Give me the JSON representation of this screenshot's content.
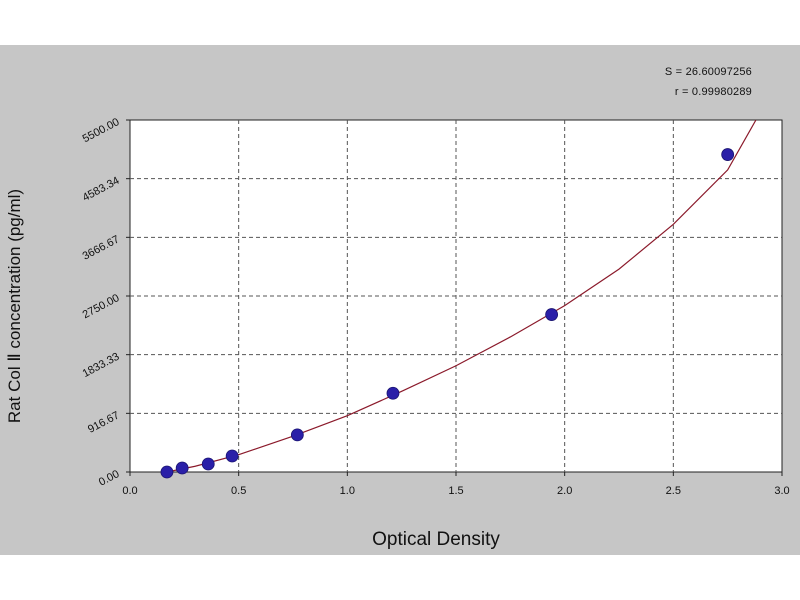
{
  "colors": {
    "panel_background": "#c6c6c6",
    "plot_background": "#ffffff",
    "curve": "#8b1a2b",
    "markers": "#2a1fa8",
    "grid": "#555555"
  },
  "stats": {
    "s_line": "S = 26.60097256",
    "r_line": "r = 0.99980289"
  },
  "chart_data": {
    "type": "scatter",
    "xlabel": "Optical Density",
    "ylabel": "Rat Col Ⅱ concentration (pg/ml)",
    "xlim": [
      0,
      3.0
    ],
    "ylim": [
      0,
      5500
    ],
    "x_ticks": [
      "0.0",
      "0.5",
      "1.0",
      "1.5",
      "2.0",
      "2.5",
      "3.0"
    ],
    "y_ticks": [
      "0.00",
      "916.67",
      "1833.33",
      "2750.00",
      "3666.67",
      "4583.34",
      "5500.00"
    ],
    "grid": true,
    "series": [
      {
        "points": [
          {
            "x": 0.17,
            "y": 0
          },
          {
            "x": 0.24,
            "y": 62
          },
          {
            "x": 0.36,
            "y": 125
          },
          {
            "x": 0.47,
            "y": 250
          },
          {
            "x": 0.77,
            "y": 580
          },
          {
            "x": 1.21,
            "y": 1230
          },
          {
            "x": 1.94,
            "y": 2460
          },
          {
            "x": 2.75,
            "y": 4960
          }
        ]
      }
    ],
    "fit_curve": {
      "x": [
        0.17,
        0.3,
        0.5,
        0.75,
        1.0,
        1.25,
        1.5,
        1.75,
        2.0,
        2.25,
        2.5,
        2.75,
        2.88
      ],
      "y": [
        0,
        90,
        270,
        560,
        880,
        1260,
        1660,
        2110,
        2600,
        3170,
        3870,
        4720,
        5500
      ]
    }
  }
}
